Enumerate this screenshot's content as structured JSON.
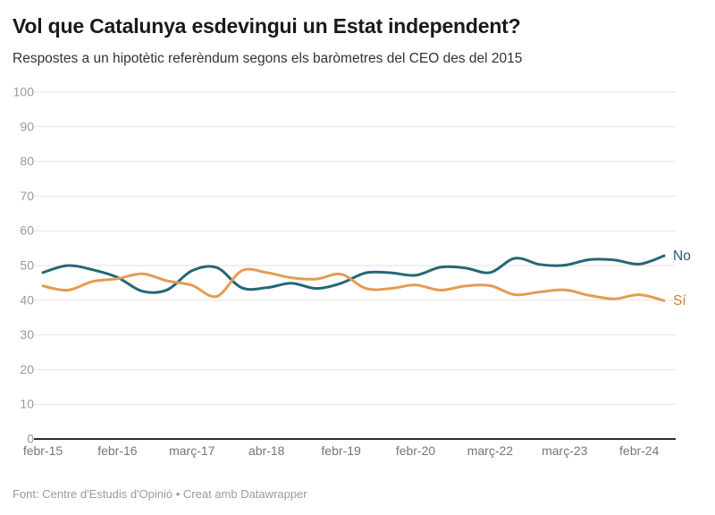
{
  "header": {
    "title": "Vol que Catalunya esdevingui un Estat independent?",
    "subtitle": "Respostes a un hipotètic referèndum segons els baròmetres del CEO des del 2015"
  },
  "chart_data": {
    "type": "line",
    "title": "Vol que Catalunya esdevingui un Estat independent?",
    "subtitle": "Respostes a un hipotètic referèndum segons els baròmetres del CEO des del 2015",
    "n_points": 26,
    "x_tick_labels": [
      "febr-15",
      "febr-16",
      "març-17",
      "abr-18",
      "febr-19",
      "febr-20",
      "març-22",
      "març-23",
      "febr-24"
    ],
    "x_tick_indices": [
      0,
      3,
      6,
      9,
      12,
      15,
      18,
      21,
      24
    ],
    "ylim": [
      0,
      100
    ],
    "y_ticks": [
      0,
      10,
      20,
      30,
      40,
      50,
      60,
      70,
      80,
      90,
      100
    ],
    "grid": "horizontal",
    "legend_position": "end-of-line",
    "series": [
      {
        "id": "no",
        "name": "No",
        "color": "#246778",
        "label_color": "#1e5c6e",
        "values": [
          48.0,
          50.0,
          48.8,
          46.6,
          42.6,
          43.0,
          48.5,
          49.4,
          43.6,
          43.6,
          44.9,
          43.4,
          44.9,
          47.9,
          47.9,
          47.2,
          49.5,
          49.3,
          48.0,
          52.1,
          50.3,
          50.1,
          51.7,
          51.6,
          50.4,
          52.8
        ]
      },
      {
        "id": "si",
        "name": "Sí",
        "color": "#e49b52",
        "label_color": "#c9803a",
        "values": [
          44.1,
          42.9,
          45.4,
          46.2,
          47.6,
          45.6,
          44.3,
          41.1,
          48.5,
          48.0,
          46.5,
          46.1,
          47.5,
          43.4,
          43.4,
          44.4,
          42.9,
          44.1,
          44.2,
          41.6,
          42.4,
          43.0,
          41.4,
          40.4,
          41.6,
          39.9
        ]
      }
    ]
  },
  "footer": {
    "text": "Font: Centre d'Estudis d'Opinió • Creat amb Datawrapper"
  }
}
